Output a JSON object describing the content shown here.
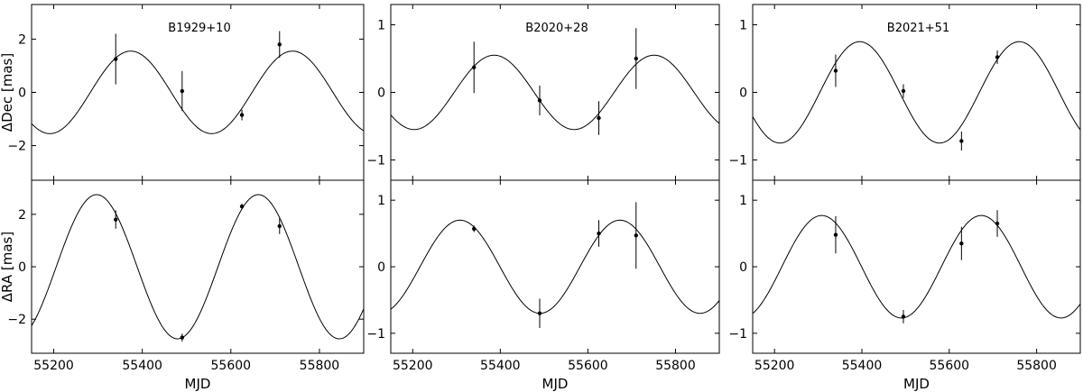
{
  "chart_data": [
    {
      "type": "scatter",
      "title": "B1929+10",
      "xlabel": "MJD",
      "top": {
        "ylabel": "ΔDec [mas]",
        "ylim": [
          -3.3,
          3.3
        ],
        "yticks": [
          -2,
          0,
          2
        ],
        "points": [
          {
            "x": 55340,
            "y": 1.25,
            "err": 0.95
          },
          {
            "x": 55490,
            "y": 0.05,
            "err": 0.75
          },
          {
            "x": 55625,
            "y": -0.85,
            "err": 0.2
          },
          {
            "x": 55710,
            "y": 1.8,
            "err": 0.5
          }
        ],
        "model": {
          "amplitude": 1.55,
          "period": 365.25,
          "peak_x": 55374
        }
      },
      "bottom": {
        "ylabel": "ΔRA [mas]",
        "ylim": [
          -3.3,
          3.3
        ],
        "yticks": [
          -2,
          0,
          2
        ],
        "points": [
          {
            "x": 55340,
            "y": 1.8,
            "err": 0.35
          },
          {
            "x": 55490,
            "y": -2.7,
            "err": 0.15
          },
          {
            "x": 55625,
            "y": 2.3,
            "err": 0.1
          },
          {
            "x": 55710,
            "y": 1.55,
            "err": 0.3
          }
        ],
        "model": {
          "amplitude": 2.75,
          "period": 365.25,
          "peak_x": 55297
        }
      }
    },
    {
      "type": "scatter",
      "title": "B2020+28",
      "xlabel": "MJD",
      "top": {
        "ylabel": "",
        "ylim": [
          -1.3,
          1.3
        ],
        "yticks": [
          -1,
          0,
          1
        ],
        "points": [
          {
            "x": 55340,
            "y": 0.37,
            "err": 0.38
          },
          {
            "x": 55490,
            "y": -0.12,
            "err": 0.22
          },
          {
            "x": 55625,
            "y": -0.38,
            "err": 0.25
          },
          {
            "x": 55710,
            "y": 0.5,
            "err": 0.45
          }
        ],
        "model": {
          "amplitude": 0.55,
          "period": 365.25,
          "peak_x": 55386
        }
      },
      "bottom": {
        "ylabel": "",
        "ylim": [
          -1.3,
          1.3
        ],
        "yticks": [
          -1,
          0,
          1
        ],
        "points": [
          {
            "x": 55340,
            "y": 0.57,
            "err": 0.05
          },
          {
            "x": 55490,
            "y": -0.7,
            "err": 0.22
          },
          {
            "x": 55625,
            "y": 0.5,
            "err": 0.2
          },
          {
            "x": 55710,
            "y": 0.47,
            "err": 0.5
          }
        ],
        "model": {
          "amplitude": 0.7,
          "period": 365.25,
          "peak_x": 55308
        }
      }
    },
    {
      "type": "scatter",
      "title": "B2021+51",
      "xlabel": "MJD",
      "top": {
        "ylabel": "",
        "ylim": [
          -1.3,
          1.3
        ],
        "yticks": [
          -1,
          0,
          1
        ],
        "points": [
          {
            "x": 55340,
            "y": 0.32,
            "err": 0.24
          },
          {
            "x": 55495,
            "y": 0.02,
            "err": 0.1
          },
          {
            "x": 55628,
            "y": -0.72,
            "err": 0.14
          },
          {
            "x": 55710,
            "y": 0.52,
            "err": 0.1
          }
        ],
        "model": {
          "amplitude": 0.75,
          "period": 365.25,
          "peak_x": 55395
        }
      },
      "bottom": {
        "ylabel": "",
        "ylim": [
          -1.3,
          1.3
        ],
        "yticks": [
          -1,
          0,
          1
        ],
        "points": [
          {
            "x": 55340,
            "y": 0.48,
            "err": 0.28
          },
          {
            "x": 55495,
            "y": -0.75,
            "err": 0.1
          },
          {
            "x": 55628,
            "y": 0.35,
            "err": 0.25
          },
          {
            "x": 55710,
            "y": 0.65,
            "err": 0.2
          }
        ],
        "model": {
          "amplitude": 0.77,
          "period": 365.25,
          "peak_x": 55308
        }
      }
    }
  ],
  "x_axis": {
    "xlim": [
      55150,
      55900
    ],
    "xticks": [
      55200,
      55400,
      55600,
      55800
    ],
    "tick_labels": [
      "55200",
      "55400",
      "55600",
      "55800"
    ]
  }
}
